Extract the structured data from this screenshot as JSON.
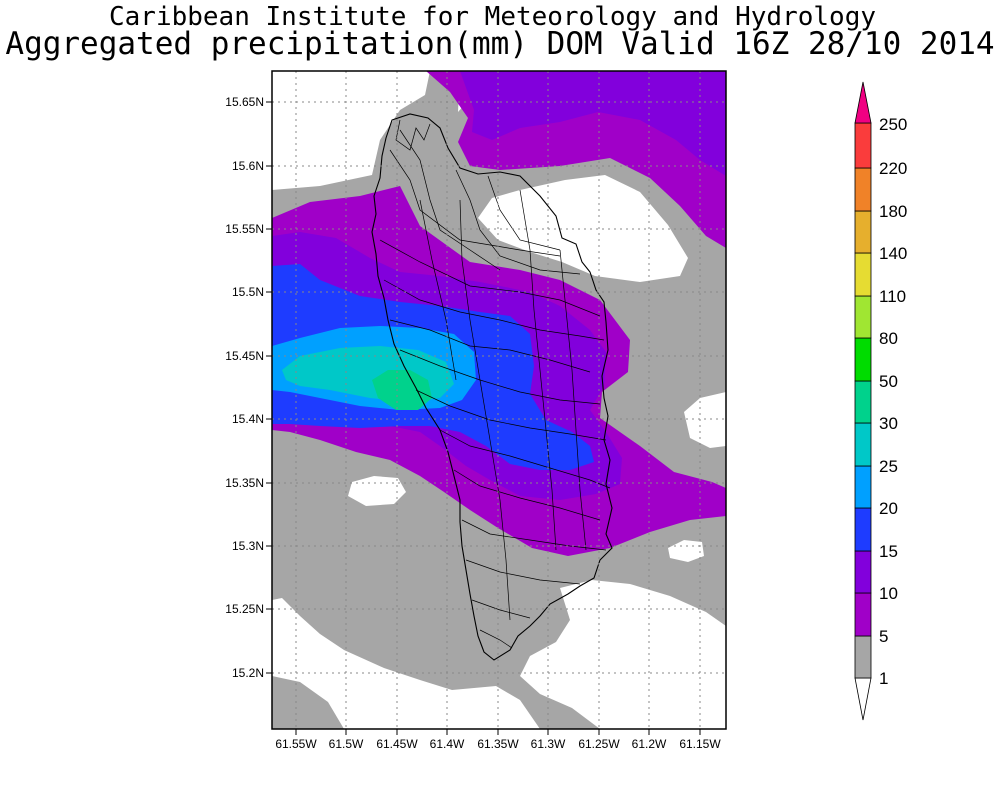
{
  "title": {
    "line1": "Caribbean Institute for Meteorology and Hydrology",
    "line2": "Aggregated precipitation(mm) DOM Valid 16Z 28/10 2014"
  },
  "map": {
    "lon_range": [
      -61.58,
      -61.13
    ],
    "lat_range": [
      15.155,
      15.68
    ],
    "lon_ticks": [
      "61.55W",
      "61.5W",
      "61.45W",
      "61.4W",
      "61.35W",
      "61.3W",
      "61.25W",
      "61.2W",
      "61.15W"
    ],
    "lat_ticks": [
      "15.65N",
      "15.6N",
      "15.55N",
      "15.5N",
      "15.45N",
      "15.4N",
      "15.35N",
      "15.3N",
      "15.25N",
      "15.2N"
    ],
    "grid": true
  },
  "legend": {
    "levels": [
      "1",
      "5",
      "10",
      "15",
      "20",
      "25",
      "30",
      "50",
      "80",
      "110",
      "140",
      "180",
      "220",
      "250"
    ],
    "colors": [
      "#ffffff",
      "#a6a6a6",
      "#a000c8",
      "#8200dc",
      "#1e3cff",
      "#00a0ff",
      "#00c8c8",
      "#00d28c",
      "#00dc00",
      "#a0e632",
      "#e6dc32",
      "#e6af2d",
      "#f08228",
      "#fa3c3c",
      "#f00082"
    ]
  }
}
